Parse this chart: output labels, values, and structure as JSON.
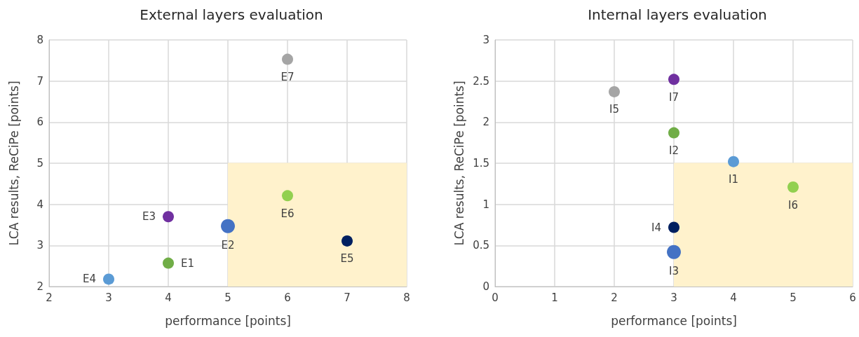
{
  "chart_data": [
    {
      "type": "scatter",
      "title": "External layers evaluation",
      "xlabel": "performance [points]",
      "ylabel": "LCA results, ReCiPe [points]",
      "xlim": [
        2,
        8
      ],
      "xticks": [
        2,
        3,
        4,
        5,
        6,
        7,
        8
      ],
      "ylim": [
        2,
        8
      ],
      "yticks": [
        2,
        3,
        4,
        5,
        6,
        7,
        8
      ],
      "grid": true,
      "legend": false,
      "marker": "circle",
      "series": [
        {
          "type": "area",
          "marker": "none",
          "color": "#fff2cc",
          "x": [
            5,
            8
          ],
          "values": [
            5,
            5
          ]
        },
        {
          "name": "E1",
          "color": "#70ad47",
          "x": [
            4
          ],
          "values": [
            2.57
          ]
        },
        {
          "name": "E2",
          "color": "#4472c4",
          "x": [
            5
          ],
          "values": [
            3.47
          ]
        },
        {
          "name": "E3",
          "color": "#7030a0",
          "x": [
            4
          ],
          "values": [
            3.7
          ]
        },
        {
          "name": "E4",
          "color": "#5b9bd5",
          "x": [
            3
          ],
          "values": [
            2.18
          ]
        },
        {
          "name": "E5",
          "color": "#002060",
          "x": [
            7
          ],
          "values": [
            3.11
          ]
        },
        {
          "name": "E6",
          "color": "#92d050",
          "x": [
            6
          ],
          "values": [
            4.21
          ]
        },
        {
          "name": "E7",
          "color": "#a5a5a5",
          "x": [
            6
          ],
          "values": [
            7.53
          ]
        }
      ]
    },
    {
      "type": "scatter",
      "title": "Internal layers evaluation",
      "xlabel": "performance [points]",
      "ylabel": "LCA results, ReCiPe [points]",
      "xlim": [
        0,
        6
      ],
      "xticks": [
        0,
        1,
        2,
        3,
        4,
        5,
        6
      ],
      "ylim": [
        0,
        3
      ],
      "yticks": [
        0,
        0.5,
        1,
        1.5,
        2,
        2.5,
        3
      ],
      "grid": true,
      "legend": false,
      "marker": "circle",
      "series": [
        {
          "type": "area",
          "marker": "none",
          "color": "#fff2cc",
          "x": [
            3,
            6
          ],
          "values": [
            1.5,
            1.5
          ]
        },
        {
          "name": "I1",
          "color": "#5b9bd5",
          "x": [
            4
          ],
          "values": [
            1.52
          ]
        },
        {
          "name": "I2",
          "color": "#70ad47",
          "x": [
            3
          ],
          "values": [
            1.87
          ]
        },
        {
          "name": "I3",
          "color": "#4472c4",
          "x": [
            3
          ],
          "values": [
            0.42
          ]
        },
        {
          "name": "I4",
          "color": "#002060",
          "x": [
            3
          ],
          "values": [
            0.72
          ]
        },
        {
          "name": "I5",
          "color": "#a5a5a5",
          "x": [
            2
          ],
          "values": [
            2.37
          ]
        },
        {
          "name": "I6",
          "color": "#92d050",
          "x": [
            5
          ],
          "values": [
            1.21
          ]
        },
        {
          "name": "I7",
          "color": "#7030a0",
          "x": [
            3
          ],
          "values": [
            2.52
          ]
        }
      ]
    }
  ]
}
